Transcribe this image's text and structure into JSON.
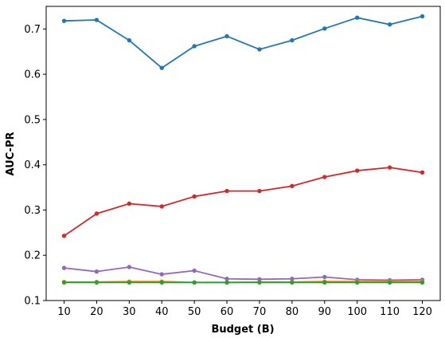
{
  "chart_data": {
    "type": "line",
    "title": "",
    "xlabel": "Budget (B)",
    "ylabel": "AUC-PR",
    "x": [
      10,
      20,
      30,
      40,
      50,
      60,
      70,
      80,
      90,
      100,
      110,
      120
    ],
    "xlim": [
      4.5,
      125.5
    ],
    "ylim": [
      0.1,
      0.75
    ],
    "yticks": [
      0.1,
      0.2,
      0.3,
      0.4,
      0.5,
      0.6,
      0.7
    ],
    "ytick_labels": [
      "0.1",
      "0.2",
      "0.3",
      "0.4",
      "0.5",
      "0.6",
      "0.7"
    ],
    "xtick_labels": [
      "10",
      "20",
      "30",
      "40",
      "50",
      "60",
      "70",
      "80",
      "90",
      "100",
      "110",
      "120"
    ],
    "grid": false,
    "legend": "none",
    "series": [
      {
        "color": "#1f77b4",
        "values": [
          0.718,
          0.72,
          0.675,
          0.614,
          0.662,
          0.684,
          0.655,
          0.675,
          0.701,
          0.725,
          0.71,
          0.728
        ]
      },
      {
        "color": "#d62728",
        "values": [
          0.243,
          0.292,
          0.314,
          0.308,
          0.33,
          0.342,
          0.342,
          0.353,
          0.373,
          0.387,
          0.394,
          0.383
        ]
      },
      {
        "color": "#9467bd",
        "values": [
          0.172,
          0.164,
          0.174,
          0.158,
          0.166,
          0.148,
          0.147,
          0.148,
          0.152,
          0.146,
          0.145,
          0.146
        ]
      },
      {
        "color": "#ff7f0e",
        "values": [
          0.141,
          0.141,
          0.142,
          0.142,
          0.14,
          0.14,
          0.141,
          0.141,
          0.142,
          0.142,
          0.142,
          0.142
        ]
      },
      {
        "color": "#2ca02c",
        "values": [
          0.14,
          0.14,
          0.14,
          0.14,
          0.14,
          0.14,
          0.14,
          0.14,
          0.14,
          0.14,
          0.14,
          0.14
        ]
      }
    ]
  }
}
